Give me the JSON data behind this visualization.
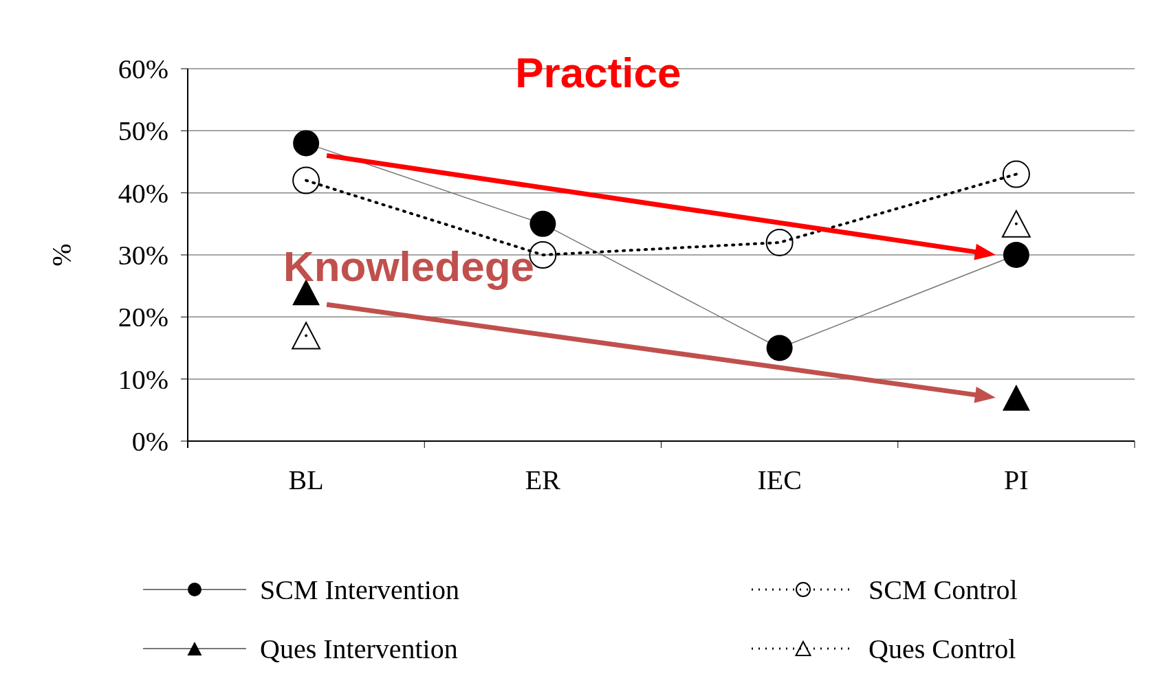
{
  "chart_data": {
    "type": "line",
    "ylabel": "%",
    "categories": [
      "BL",
      "ER",
      "IEC",
      "PI"
    ],
    "series": [
      {
        "name": "SCM Intervention",
        "color": "#000000",
        "marker": "circle",
        "line_style": "solid",
        "values": [
          48,
          35,
          15,
          30
        ]
      },
      {
        "name": "SCM Control",
        "color": "#000000",
        "marker": "circle",
        "line_style": "dotted",
        "values": [
          42,
          30,
          32,
          43
        ]
      },
      {
        "name": "Ques Intervention",
        "color": "#000000",
        "marker": "triangle",
        "line_style": "solid",
        "values": [
          24,
          null,
          null,
          7
        ]
      },
      {
        "name": "Ques Control",
        "color": "#000000",
        "marker": "triangle",
        "line_style": "dotted",
        "values": [
          17,
          null,
          null,
          35
        ]
      }
    ],
    "ylim": [
      0,
      60
    ],
    "yticks": [
      {
        "value": 0,
        "label": "0%"
      },
      {
        "value": 10,
        "label": "10%"
      },
      {
        "value": 20,
        "label": "20%"
      },
      {
        "value": 30,
        "label": "30%"
      },
      {
        "value": 40,
        "label": "40%"
      },
      {
        "value": 50,
        "label": "50%"
      },
      {
        "value": 60,
        "label": "60%"
      }
    ],
    "grid": "y",
    "legend": "bottom",
    "annotations": [
      "Practice",
      "Knowledege"
    ]
  }
}
